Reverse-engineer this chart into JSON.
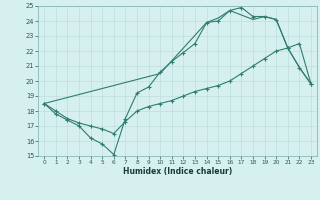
{
  "xlabel": "Humidex (Indice chaleur)",
  "background_color": "#d6f0ef",
  "grid_color": "#c0dede",
  "line_color": "#2e7d6e",
  "xlim": [
    -0.5,
    23.5
  ],
  "ylim": [
    15,
    25
  ],
  "xticks": [
    0,
    1,
    2,
    3,
    4,
    5,
    6,
    7,
    8,
    9,
    10,
    11,
    12,
    13,
    14,
    15,
    16,
    17,
    18,
    19,
    20,
    21,
    22,
    23
  ],
  "yticks": [
    15,
    16,
    17,
    18,
    19,
    20,
    21,
    22,
    23,
    24,
    25
  ],
  "line1_x": [
    0,
    1,
    2,
    3,
    4,
    5,
    6,
    7,
    8,
    9,
    10,
    11,
    12,
    13,
    14,
    15,
    16,
    17,
    18,
    19,
    20,
    21,
    22,
    23
  ],
  "line1_y": [
    18.5,
    17.8,
    17.4,
    17.0,
    16.2,
    15.8,
    15.1,
    17.5,
    19.2,
    19.6,
    20.6,
    21.3,
    21.9,
    22.5,
    23.9,
    24.0,
    24.7,
    24.9,
    24.3,
    24.3,
    24.1,
    22.2,
    20.9,
    19.8
  ],
  "line2_x": [
    0,
    10,
    14,
    15,
    16,
    17,
    18,
    19,
    20,
    21,
    22,
    23
  ],
  "line2_y": [
    18.5,
    20.5,
    23.9,
    24.2,
    24.7,
    24.4,
    24.1,
    24.3,
    24.1,
    22.2,
    20.9,
    19.8
  ],
  "line3_x": [
    0,
    1,
    2,
    3,
    4,
    5,
    6,
    7,
    8,
    9,
    10,
    11,
    12,
    13,
    14,
    15,
    16,
    17,
    18,
    19,
    20,
    21,
    22,
    23
  ],
  "line3_y": [
    18.5,
    18.0,
    17.5,
    17.2,
    17.0,
    16.8,
    16.5,
    17.3,
    18.0,
    18.3,
    18.5,
    18.7,
    19.0,
    19.3,
    19.5,
    19.7,
    20.0,
    20.5,
    21.0,
    21.5,
    22.0,
    22.2,
    22.5,
    19.8
  ]
}
